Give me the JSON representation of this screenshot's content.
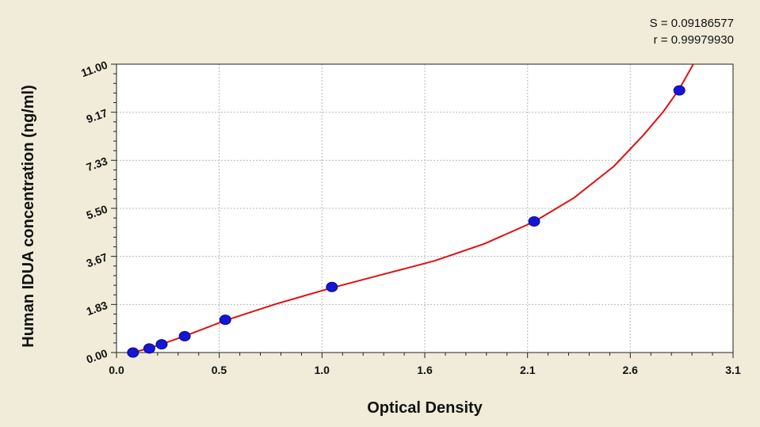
{
  "chart_data": {
    "type": "scatter",
    "title": "",
    "xlabel": "Optical Density",
    "ylabel": "Human IDUA concentration (ng/ml)",
    "xlim": [
      0.0,
      3.1
    ],
    "ylim": [
      0.0,
      11.0
    ],
    "x_ticks": [
      "0.0",
      "0.5",
      "1.0",
      "1.6",
      "2.1",
      "2.6",
      "3.1"
    ],
    "x_tick_values": [
      0.0,
      0.516,
      1.033,
      1.55,
      2.067,
      2.583,
      3.1
    ],
    "y_ticks": [
      "0.00",
      "1.83",
      "3.67",
      "5.50",
      "7.33",
      "9.17",
      "11.00"
    ],
    "y_tick_values": [
      0.0,
      1.833,
      3.667,
      5.5,
      7.333,
      9.167,
      11.0
    ],
    "grid": true,
    "series": [
      {
        "x": [
          0.083,
          0.165,
          0.227,
          0.343,
          0.547,
          1.083,
          2.1,
          2.83
        ],
        "y": [
          0.0,
          0.156,
          0.313,
          0.625,
          1.25,
          2.5,
          5.0,
          10.0
        ]
      }
    ],
    "fit_curve": {
      "x": [
        0.083,
        0.165,
        0.227,
        0.343,
        0.547,
        0.8,
        1.083,
        1.35,
        1.6,
        1.85,
        2.1,
        2.3,
        2.5,
        2.65,
        2.75,
        2.83,
        2.9
      ],
      "y": [
        0.0,
        0.17,
        0.32,
        0.63,
        1.22,
        1.85,
        2.47,
        3.0,
        3.5,
        4.15,
        4.99,
        5.9,
        7.1,
        8.3,
        9.2,
        10.05,
        11.0
      ]
    },
    "stats": {
      "s_label": "S = 0.09186577",
      "r_label": "r = 0.99979930"
    },
    "colors": {
      "background": "#f0ecd9",
      "plot_area": "#ffffff",
      "points": "#1515d6",
      "curve": "#e01010",
      "grid": "#b9b9b9"
    }
  }
}
